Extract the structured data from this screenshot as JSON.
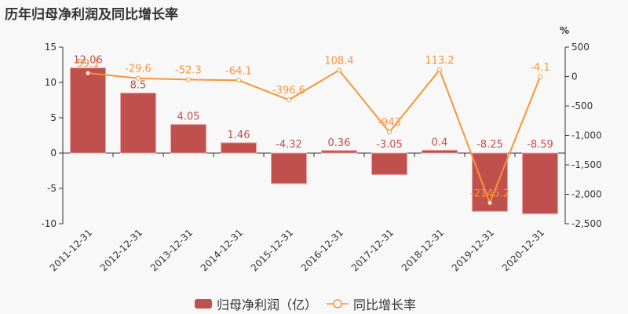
{
  "chart_data": {
    "type": "bar+line",
    "title": "历年归母净利润及同比增长率",
    "categories": [
      "2011-12-31",
      "2012-12-31",
      "2013-12-31",
      "2014-12-31",
      "2015-12-31",
      "2016-12-31",
      "2017-12-31",
      "2018-12-31",
      "2019-12-31",
      "2020-12-31"
    ],
    "series": [
      {
        "name": "归母净利润（亿）",
        "type": "bar",
        "axis": "left",
        "color": "#c0504d",
        "values": [
          12.06,
          8.5,
          4.05,
          1.46,
          -4.32,
          0.36,
          -3.05,
          0.4,
          -8.25,
          -8.59
        ]
      },
      {
        "name": "同比增长率",
        "type": "line",
        "axis": "right",
        "color": "#f7953a",
        "values": [
          59.1,
          -29.6,
          -52.3,
          -64.1,
          -396.6,
          108.4,
          -943,
          113.2,
          -2145.2,
          -4.1
        ]
      }
    ],
    "left_axis": {
      "ylim": [
        -10,
        15
      ],
      "ticks": [
        15,
        10,
        5,
        0,
        -5,
        -10
      ]
    },
    "right_axis": {
      "label": "%",
      "ylim": [
        -2500,
        500
      ],
      "ticks": [
        500,
        0,
        -500,
        -1000,
        -1500,
        -2000,
        -2500
      ],
      "tick_labels": [
        "500",
        "0",
        "-500",
        "-1,000",
        "-1,500",
        "-2,000",
        "-2,500"
      ]
    },
    "xlabel": "",
    "ylabel": "",
    "grid": false,
    "legend_position": "bottom"
  },
  "header": {
    "title": "历年归母净利润及同比增长率"
  },
  "legend": {
    "bar_label": "归母净利润（亿）",
    "line_label": "同比增长率"
  }
}
